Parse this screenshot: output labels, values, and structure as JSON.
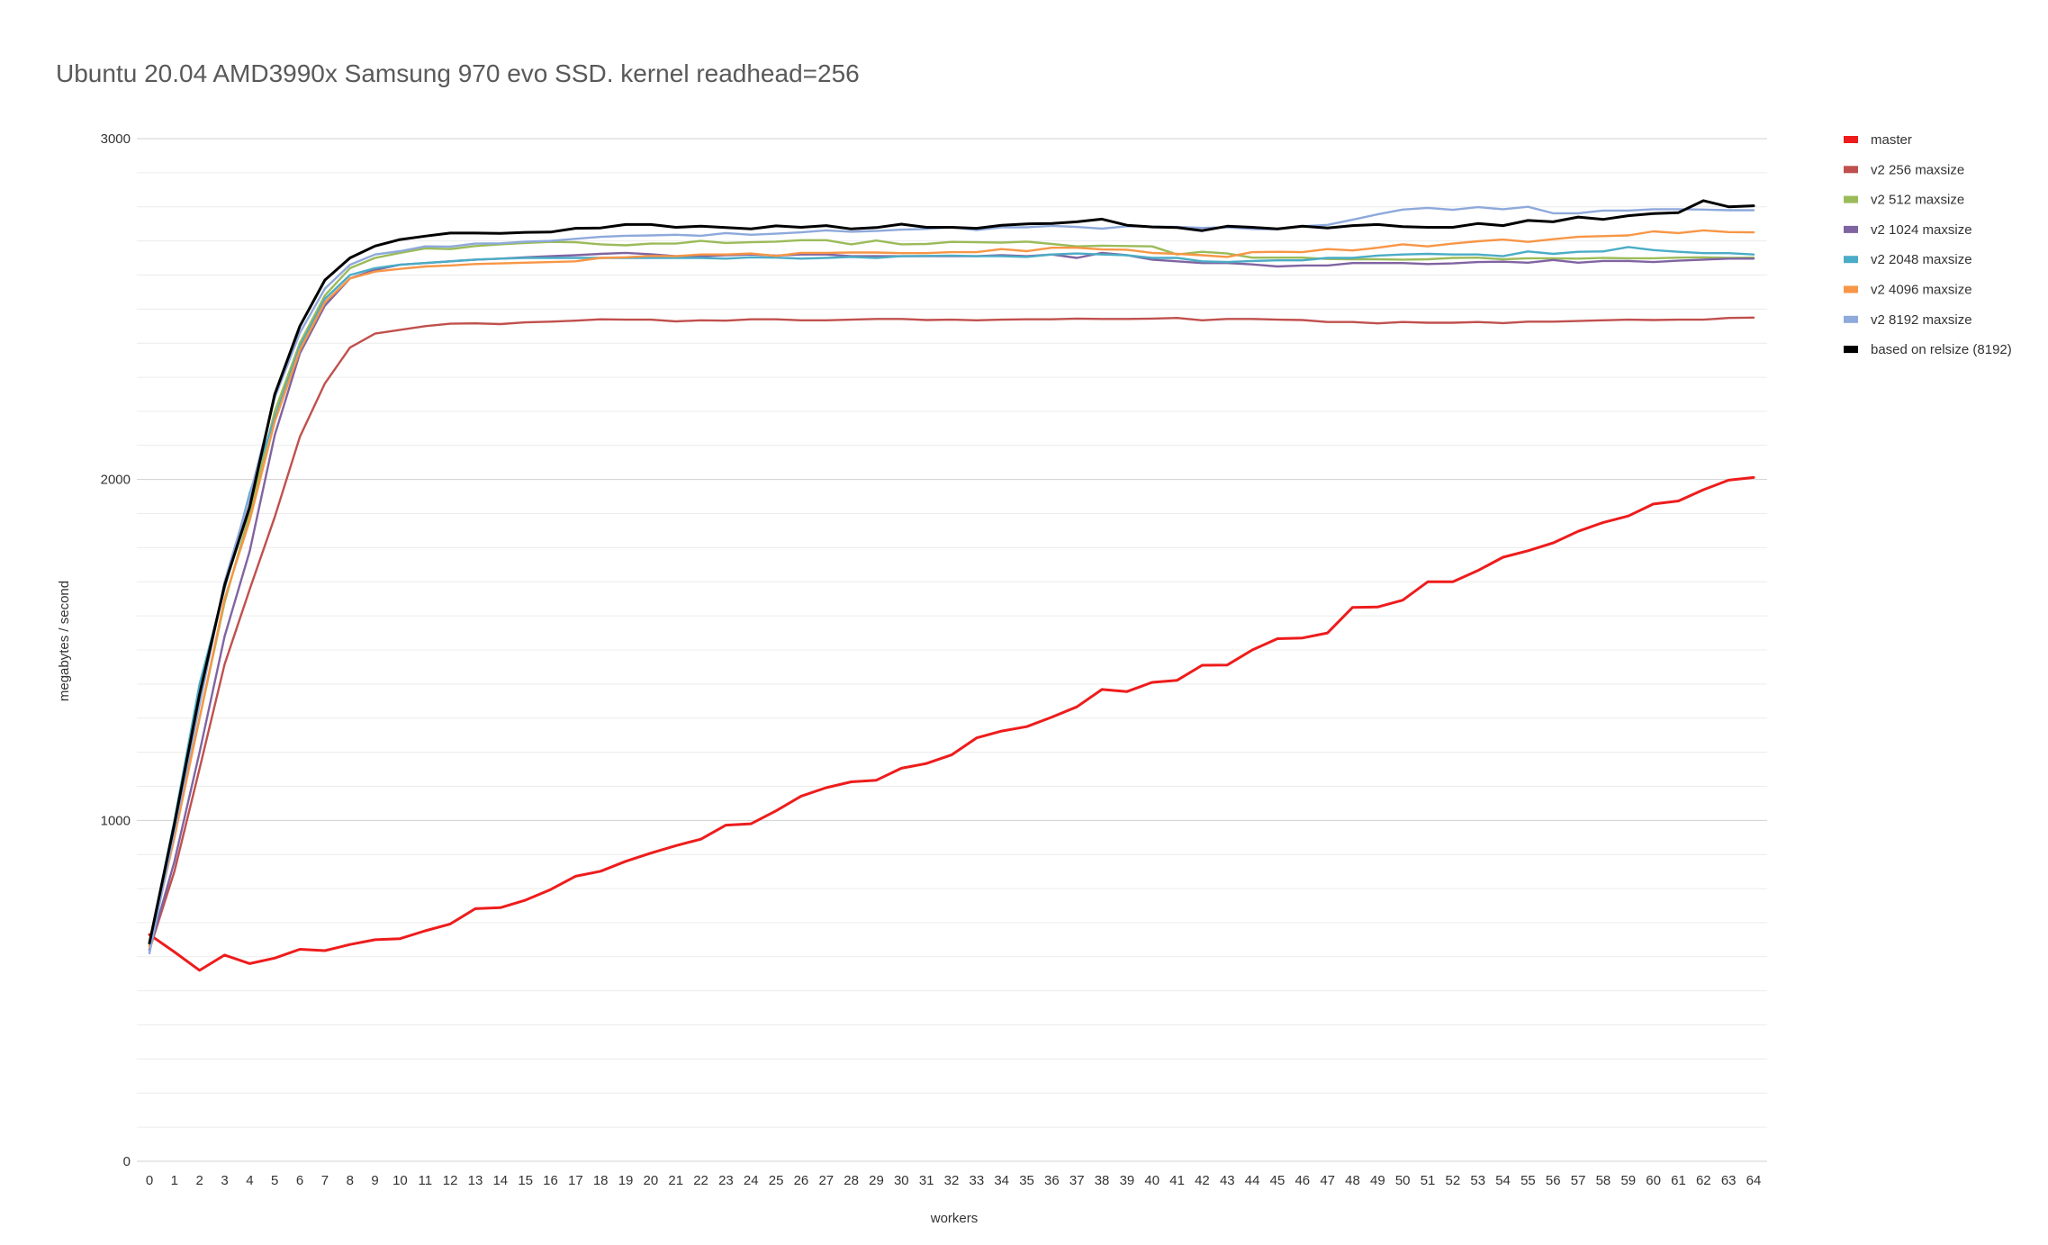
{
  "chart_data": {
    "type": "line",
    "title": "Ubuntu 20.04 AMD3990x Samsung 970 evo SSD.  kernel readhead=256",
    "xlabel": "workers",
    "ylabel": "megabytes / second",
    "ylim": [
      0,
      3000
    ],
    "yticks": [
      0,
      1000,
      2000,
      3000
    ],
    "ytick_labels": [
      "0",
      "1000",
      "2000",
      "3000"
    ],
    "minor_grid_step": 100,
    "grid": true,
    "legend_position": "right",
    "x": [
      0,
      1,
      2,
      3,
      4,
      5,
      6,
      7,
      8,
      9,
      10,
      11,
      12,
      13,
      14,
      15,
      16,
      17,
      18,
      19,
      20,
      21,
      22,
      23,
      24,
      25,
      26,
      27,
      28,
      29,
      30,
      31,
      32,
      33,
      34,
      35,
      36,
      37,
      38,
      39,
      40,
      41,
      42,
      43,
      44,
      45,
      46,
      47,
      48,
      49,
      50,
      51,
      52,
      53,
      54,
      55,
      56,
      57,
      58,
      59,
      60,
      61,
      62,
      63,
      64
    ],
    "xtick_labels": [
      "0",
      "1",
      "2",
      "3",
      "4",
      "5",
      "6",
      "7",
      "8",
      "9",
      "10",
      "11",
      "12",
      "13",
      "14",
      "15",
      "16",
      "17",
      "18",
      "19",
      "20",
      "21",
      "22",
      "23",
      "24",
      "25",
      "26",
      "27",
      "28",
      "29",
      "30",
      "31",
      "32",
      "33",
      "34",
      "35",
      "36",
      "37",
      "38",
      "39",
      "40",
      "41",
      "42",
      "43",
      "44",
      "45",
      "46",
      "47",
      "48",
      "49",
      "50",
      "51",
      "52",
      "53",
      "54",
      "55",
      "56",
      "57",
      "58",
      "59",
      "60",
      "61",
      "62",
      "63",
      "64"
    ],
    "series": [
      {
        "name": "master",
        "color": "#ee1c1c",
        "values": [
          665,
          614,
          560,
          605,
          580,
          596,
          622,
          618,
          636,
          650,
          653,
          676,
          696,
          741,
          744,
          766,
          797,
          836,
          851,
          880,
          904,
          926,
          945,
          986,
          990,
          1028,
          1071,
          1096,
          1113,
          1118,
          1153,
          1167,
          1192,
          1242,
          1262,
          1275,
          1303,
          1333,
          1384,
          1378,
          1405,
          1411,
          1455,
          1456,
          1500,
          1533,
          1535,
          1550,
          1625,
          1626,
          1646,
          1700,
          1700,
          1733,
          1772,
          1791,
          1814,
          1848,
          1874,
          1893,
          1928,
          1937,
          1970,
          1998,
          2006
        ]
      },
      {
        "name": "v2 256 maxsize",
        "color": "#c0504d",
        "values": [
          620,
          851,
          1152,
          1458,
          1678,
          1890,
          2125,
          2282,
          2387,
          2428,
          2439,
          2450,
          2457,
          2458,
          2456,
          2461,
          2463,
          2466,
          2470,
          2469,
          2469,
          2464,
          2467,
          2466,
          2470,
          2470,
          2467,
          2467,
          2469,
          2471,
          2471,
          2468,
          2469,
          2467,
          2469,
          2470,
          2470,
          2472,
          2471,
          2471,
          2472,
          2474,
          2467,
          2471,
          2471,
          2469,
          2468,
          2462,
          2462,
          2458,
          2462,
          2460,
          2460,
          2462,
          2459,
          2463,
          2463,
          2465,
          2467,
          2469,
          2468,
          2469,
          2469,
          2474,
          2475
        ]
      },
      {
        "name": "v2 512 maxsize",
        "color": "#9bbb59",
        "values": [
          630,
          960,
          1300,
          1640,
          1900,
          2200,
          2400,
          2540,
          2620,
          2650,
          2665,
          2678,
          2676,
          2685,
          2690,
          2694,
          2697,
          2696,
          2690,
          2687,
          2692,
          2692,
          2700,
          2694,
          2696,
          2698,
          2702,
          2702,
          2690,
          2701,
          2690,
          2691,
          2697,
          2696,
          2695,
          2698,
          2691,
          2684,
          2686,
          2685,
          2684,
          2660,
          2668,
          2663,
          2651,
          2651,
          2651,
          2647,
          2646,
          2646,
          2645,
          2646,
          2650,
          2651,
          2646,
          2649,
          2649,
          2648,
          2650,
          2649,
          2649,
          2651,
          2652,
          2650,
          2651
        ]
      },
      {
        "name": "v2 1024 maxsize",
        "color": "#8064a2",
        "values": [
          620,
          880,
          1200,
          1540,
          1790,
          2130,
          2370,
          2510,
          2590,
          2615,
          2630,
          2635,
          2640,
          2645,
          2648,
          2652,
          2655,
          2658,
          2662,
          2665,
          2661,
          2655,
          2655,
          2658,
          2660,
          2657,
          2660,
          2660,
          2655,
          2655,
          2655,
          2655,
          2655,
          2655,
          2658,
          2655,
          2660,
          2650,
          2665,
          2658,
          2645,
          2640,
          2635,
          2635,
          2631,
          2625,
          2628,
          2628,
          2635,
          2635,
          2635,
          2632,
          2634,
          2638,
          2639,
          2636,
          2644,
          2636,
          2641,
          2641,
          2638,
          2642,
          2645,
          2648,
          2648
        ]
      },
      {
        "name": "v2 2048 maxsize",
        "color": "#4bacc6",
        "values": [
          640,
          1000,
          1400,
          1680,
          1960,
          2180,
          2390,
          2530,
          2600,
          2620,
          2630,
          2635,
          2640,
          2645,
          2648,
          2650,
          2650,
          2650,
          2650,
          2650,
          2650,
          2650,
          2650,
          2648,
          2652,
          2651,
          2648,
          2650,
          2653,
          2650,
          2655,
          2656,
          2657,
          2655,
          2655,
          2653,
          2660,
          2663,
          2660,
          2658,
          2650,
          2650,
          2640,
          2638,
          2641,
          2643,
          2643,
          2650,
          2650,
          2657,
          2660,
          2662,
          2660,
          2660,
          2655,
          2669,
          2662,
          2668,
          2669,
          2682,
          2673,
          2668,
          2664,
          2664,
          2660
        ]
      },
      {
        "name": "v2 4096 maxsize",
        "color": "#f79646",
        "values": [
          630,
          950,
          1300,
          1650,
          1880,
          2170,
          2380,
          2520,
          2590,
          2610,
          2618,
          2625,
          2628,
          2632,
          2634,
          2636,
          2638,
          2640,
          2650,
          2652,
          2656,
          2655,
          2660,
          2660,
          2663,
          2656,
          2665,
          2665,
          2666,
          2666,
          2664,
          2664,
          2667,
          2667,
          2676,
          2670,
          2680,
          2680,
          2675,
          2674,
          2665,
          2662,
          2658,
          2653,
          2667,
          2668,
          2667,
          2676,
          2672,
          2680,
          2690,
          2684,
          2692,
          2699,
          2704,
          2697,
          2705,
          2712,
          2714,
          2716,
          2728,
          2723,
          2731,
          2726,
          2725
        ]
      },
      {
        "name": "v2 8192 maxsize",
        "color": "#8ea9db",
        "values": [
          610,
          970,
          1340,
          1700,
          1950,
          2240,
          2430,
          2560,
          2630,
          2660,
          2670,
          2684,
          2683,
          2692,
          2693,
          2698,
          2700,
          2706,
          2712,
          2715,
          2716,
          2718,
          2715,
          2723,
          2718,
          2721,
          2725,
          2731,
          2727,
          2729,
          2733,
          2735,
          2740,
          2732,
          2740,
          2740,
          2744,
          2741,
          2736,
          2743,
          2742,
          2741,
          2738,
          2740,
          2735,
          2734,
          2743,
          2747,
          2762,
          2778,
          2792,
          2797,
          2791,
          2799,
          2793,
          2800,
          2781,
          2781,
          2789,
          2789,
          2793,
          2793,
          2792,
          2790,
          2790
        ]
      },
      {
        "name": "based on relsize (8192)",
        "color": "#000000",
        "values": [
          640,
          990,
          1370,
          1690,
          1920,
          2250,
          2450,
          2585,
          2650,
          2685,
          2704,
          2714,
          2723,
          2723,
          2722,
          2725,
          2726,
          2737,
          2738,
          2748,
          2748,
          2740,
          2743,
          2739,
          2735,
          2744,
          2740,
          2745,
          2735,
          2739,
          2749,
          2740,
          2740,
          2737,
          2746,
          2750,
          2751,
          2756,
          2764,
          2746,
          2741,
          2739,
          2730,
          2743,
          2740,
          2735,
          2743,
          2738,
          2745,
          2748,
          2742,
          2740,
          2740,
          2751,
          2745,
          2760,
          2756,
          2770,
          2763,
          2774,
          2780,
          2783,
          2818,
          2800,
          2803
        ]
      }
    ]
  }
}
